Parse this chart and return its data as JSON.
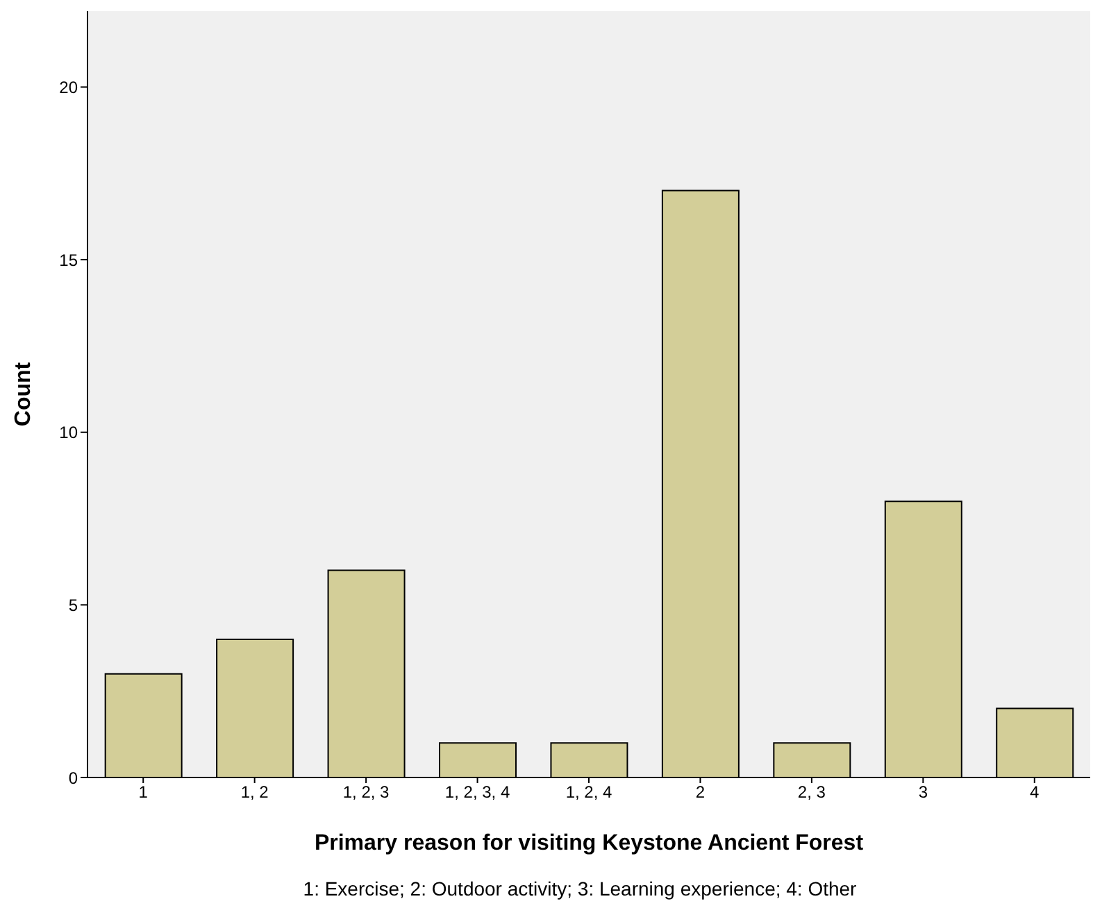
{
  "chart_data": {
    "type": "bar",
    "xlabel": "Primary reason for visiting Keystone Ancient Forest",
    "ylabel": "Count",
    "categories": [
      "1",
      "1, 2",
      "1, 2, 3",
      "1, 2, 3, 4",
      "1, 2, 4",
      "2",
      "2, 3",
      "3",
      "4"
    ],
    "values": [
      3,
      4,
      6,
      1,
      1,
      17,
      1,
      8,
      2
    ],
    "color": "#d3ce98",
    "ylim": [
      0,
      22.2
    ],
    "yticks": [
      0,
      5,
      10,
      15,
      20
    ],
    "grid": false,
    "annotations": [
      "1: Exercise; 2: Outdoor activity; 3: Learning experience; 4: Other"
    ]
  }
}
